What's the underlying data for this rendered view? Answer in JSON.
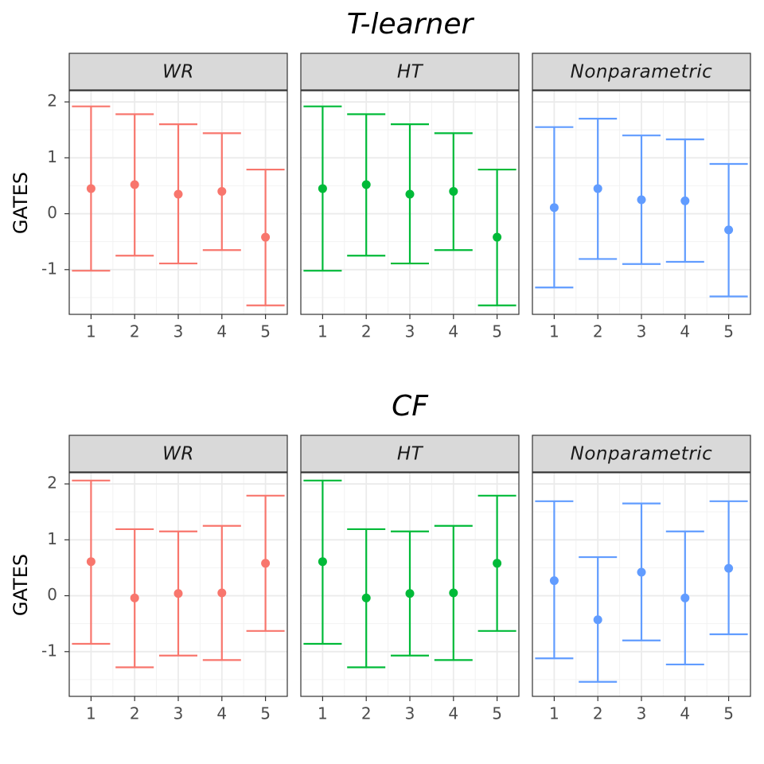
{
  "chart_data": [
    {
      "type": "errorbar",
      "title": "T-learner",
      "ylabel": "GATES",
      "ylim": [
        -1.8,
        2.2
      ],
      "yticks": [
        -1,
        0,
        1,
        2
      ],
      "ytick_labels": [
        "-1",
        "0",
        "1",
        "2"
      ],
      "categories": [
        "1",
        "2",
        "3",
        "4",
        "5"
      ],
      "grid": true,
      "panels": [
        {
          "name": "WR",
          "color": "#F8766D",
          "estimate": [
            0.45,
            0.52,
            0.35,
            0.4,
            -0.42
          ],
          "lower": [
            -1.02,
            -0.75,
            -0.89,
            -0.65,
            -1.64
          ],
          "upper": [
            1.92,
            1.78,
            1.6,
            1.44,
            0.79
          ]
        },
        {
          "name": "HT",
          "color": "#00BA38",
          "estimate": [
            0.45,
            0.52,
            0.35,
            0.4,
            -0.42
          ],
          "lower": [
            -1.02,
            -0.75,
            -0.89,
            -0.65,
            -1.64
          ],
          "upper": [
            1.92,
            1.78,
            1.6,
            1.44,
            0.79
          ]
        },
        {
          "name": "Nonparametric",
          "color": "#619CFF",
          "estimate": [
            0.11,
            0.45,
            0.25,
            0.23,
            -0.29
          ],
          "lower": [
            -1.32,
            -0.81,
            -0.9,
            -0.86,
            -1.48
          ],
          "upper": [
            1.55,
            1.7,
            1.4,
            1.33,
            0.89
          ]
        }
      ]
    },
    {
      "type": "errorbar",
      "title": "CF",
      "ylabel": "GATES",
      "ylim": [
        -1.8,
        2.2
      ],
      "yticks": [
        -1,
        0,
        1,
        2
      ],
      "ytick_labels": [
        "-1",
        "0",
        "1",
        "2"
      ],
      "categories": [
        "1",
        "2",
        "3",
        "4",
        "5"
      ],
      "grid": true,
      "panels": [
        {
          "name": "WR",
          "color": "#F8766D",
          "estimate": [
            0.61,
            -0.04,
            0.04,
            0.05,
            0.58
          ],
          "lower": [
            -0.86,
            -1.28,
            -1.07,
            -1.15,
            -0.63
          ],
          "upper": [
            2.06,
            1.19,
            1.15,
            1.25,
            1.79
          ]
        },
        {
          "name": "HT",
          "color": "#00BA38",
          "estimate": [
            0.61,
            -0.04,
            0.04,
            0.05,
            0.58
          ],
          "lower": [
            -0.86,
            -1.28,
            -1.07,
            -1.15,
            -0.63
          ],
          "upper": [
            2.06,
            1.19,
            1.15,
            1.25,
            1.79
          ]
        },
        {
          "name": "Nonparametric",
          "color": "#619CFF",
          "estimate": [
            0.27,
            -0.43,
            0.42,
            -0.04,
            0.49
          ],
          "lower": [
            -1.12,
            -1.54,
            -0.8,
            -1.23,
            -0.69
          ],
          "upper": [
            1.69,
            0.69,
            1.65,
            1.15,
            1.69
          ]
        }
      ]
    }
  ]
}
